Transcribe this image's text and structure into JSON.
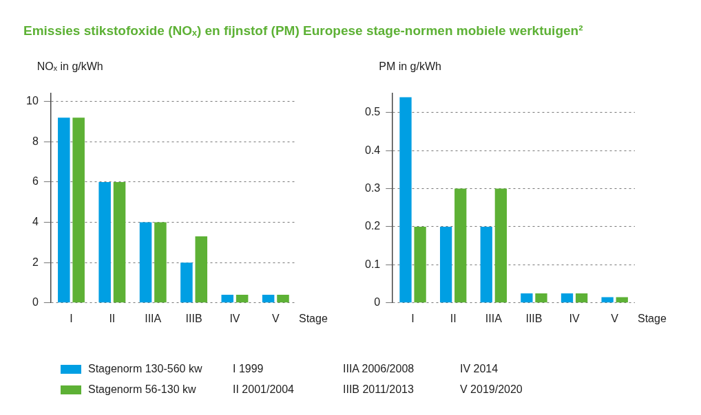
{
  "chart_data": [
    {
      "type": "bar",
      "title": "Emissies stikstofoxide (NOₓ) en fijnstof (PM) Europese stage-normen mobiele werktuigen²",
      "ylabel": "NOₓ in g/kWh",
      "xlabel": "Stage",
      "categories": [
        "I",
        "II",
        "IIIA",
        "IIIB",
        "IV",
        "V"
      ],
      "series": [
        {
          "name": "Stagenorm 130-560 kw",
          "color": "#009fe3",
          "values": [
            9.2,
            6,
            4,
            2,
            0.4,
            0.4
          ]
        },
        {
          "name": "Stagenorm 56-130 kw",
          "color": "#5db135",
          "values": [
            9.2,
            6,
            4,
            3.3,
            0.4,
            0.4
          ]
        }
      ],
      "ylim": [
        0,
        10.4
      ],
      "yticks": [
        0,
        2,
        4,
        6,
        8,
        10
      ],
      "grid": "y",
      "legend": "bottom",
      "annotations": [
        "I 1999",
        "II 2001/2004",
        "IIIA 2006/2008",
        "IIIB 2011/2013",
        "IV 2014",
        "V 2019/2020"
      ]
    },
    {
      "type": "bar",
      "ylabel": "PM in g/kWh",
      "xlabel": "Stage",
      "categories": [
        "I",
        "II",
        "IIIA",
        "IIIB",
        "IV",
        "V"
      ],
      "series": [
        {
          "color": "#009fe3",
          "values": [
            0.54,
            0.2,
            0.2,
            0.025,
            0.025,
            0.015
          ]
        },
        {
          "color": "#5db135",
          "values": [
            0.2,
            0.3,
            0.3,
            0.025,
            0.025,
            0.015
          ]
        }
      ],
      "ylim": [
        0,
        0.55
      ],
      "yticks": [
        0,
        0.1,
        0.2,
        0.3,
        0.4,
        0.5
      ],
      "grid": "y"
    }
  ]
}
